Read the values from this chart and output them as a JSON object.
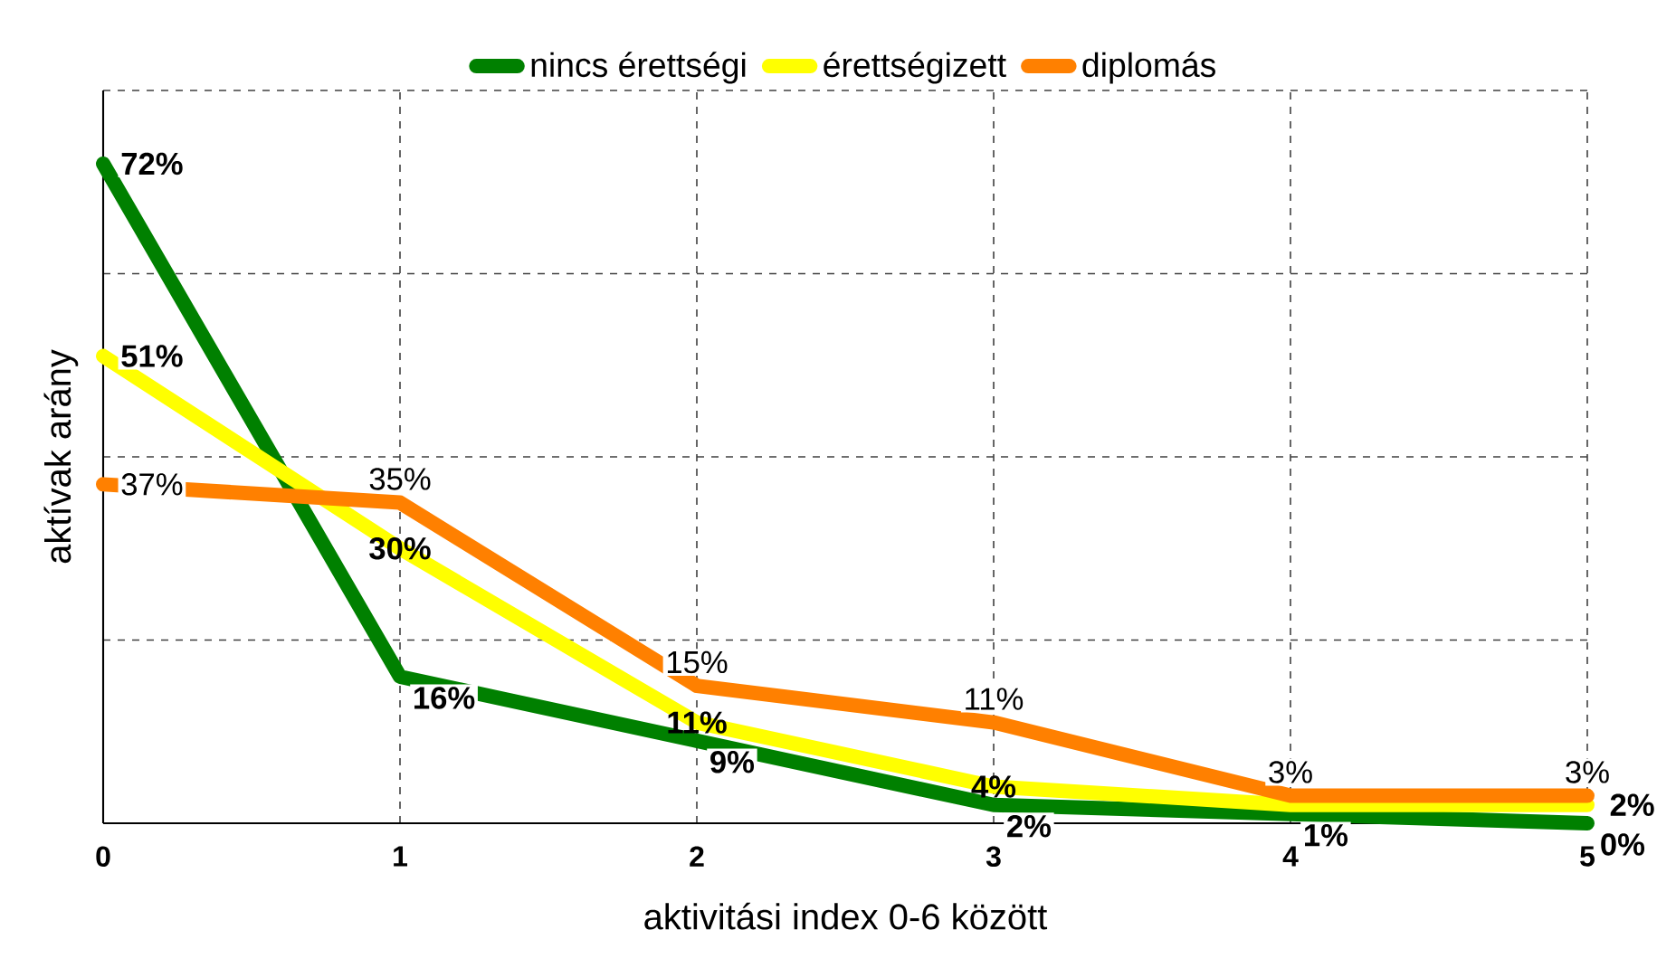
{
  "chart_data": {
    "type": "line",
    "xlabel": "aktivitási index 0-6 között",
    "ylabel": "aktívak arány",
    "x": [
      0,
      1,
      2,
      3,
      4,
      5
    ],
    "xlim": [
      0,
      5
    ],
    "xticks": [
      0,
      1,
      2,
      3,
      4,
      5
    ],
    "ylim": [
      0,
      80
    ],
    "yticks": [
      {
        "value": 0,
        "label": null
      },
      {
        "value": 20,
        "label": null
      },
      {
        "value": 40,
        "label": null
      },
      {
        "value": 60,
        "label": null
      },
      {
        "value": 80,
        "label": null
      }
    ],
    "tick_labels": "x",
    "grid": true,
    "legend": "top",
    "marker": "none",
    "line_style": "solid",
    "series": [
      {
        "name": "nincs érettségi",
        "color": "#008000",
        "values": [
          72,
          16,
          9,
          2,
          1,
          0
        ],
        "value_labels": [
          "72%",
          "16%",
          "9%",
          "2%",
          "1%",
          "0%"
        ]
      },
      {
        "name": "érettségizett",
        "color": "#ffff00",
        "values": [
          51,
          30,
          11,
          4,
          2,
          2
        ],
        "value_labels": [
          "51%",
          "30%",
          "11%",
          "4%",
          null,
          "2%"
        ]
      },
      {
        "name": "diplomás",
        "color": "#ff8000",
        "values": [
          37,
          35,
          15,
          11,
          3,
          3
        ],
        "value_labels": [
          "37%",
          "35%",
          "15%",
          "11%",
          "3%",
          "3%"
        ]
      }
    ]
  }
}
